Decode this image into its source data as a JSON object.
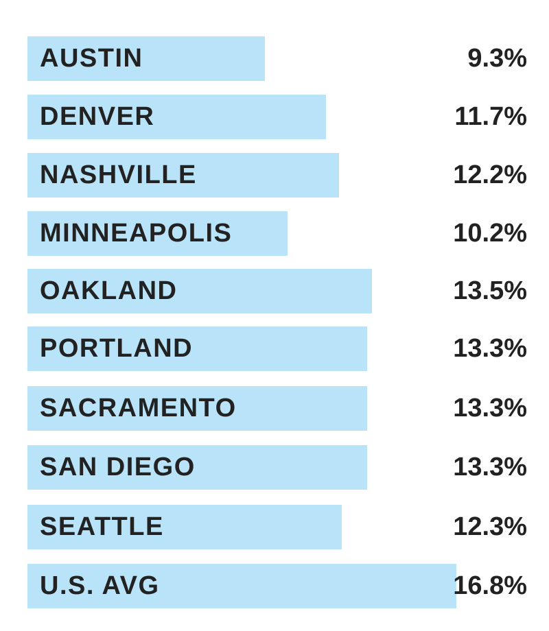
{
  "colors": {
    "bar": "#b9e3f8",
    "text": "#222222"
  },
  "chart_data": {
    "type": "bar",
    "orientation": "horizontal",
    "categories": [
      "AUSTIN",
      "DENVER",
      "NASHVILLE",
      "MINNEAPOLIS",
      "OAKLAND",
      "PORTLAND",
      "SACRAMENTO",
      "SAN DIEGO",
      "SEATTLE",
      "U.S. AVG"
    ],
    "values": [
      9.3,
      11.7,
      12.2,
      10.2,
      13.5,
      13.3,
      13.3,
      13.3,
      12.3,
      16.8
    ],
    "value_labels": [
      "9.3%",
      "11.7%",
      "12.2%",
      "10.2%",
      "13.5%",
      "13.3%",
      "13.3%",
      "13.3%",
      "12.3%",
      "16.8%"
    ],
    "title": "",
    "xlabel": "",
    "ylabel": "",
    "grid": false
  }
}
